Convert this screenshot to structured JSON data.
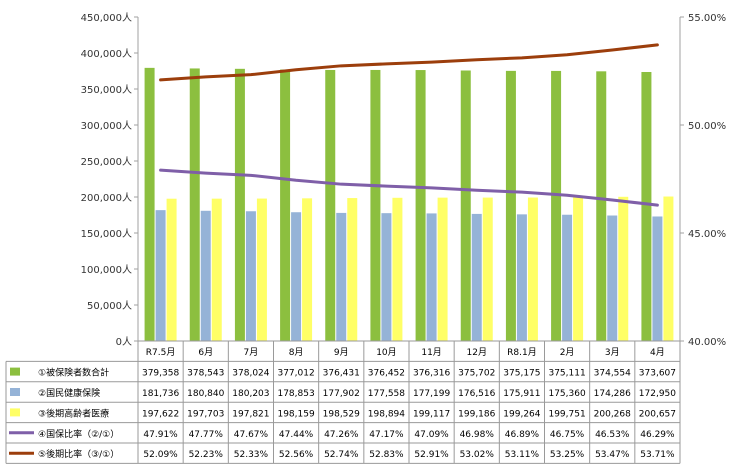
{
  "chart_data": {
    "type": "bar",
    "categories": [
      "R7.5月",
      "6月",
      "7月",
      "8月",
      "9月",
      "10月",
      "11月",
      "12月",
      "R8.1月",
      "2月",
      "3月",
      "4月"
    ],
    "y_left": {
      "min": 0,
      "max": 450000,
      "step": 50000,
      "unit": "人"
    },
    "y_right": {
      "min": 40.0,
      "max": 55.0,
      "step": 5.0,
      "unit": "%"
    },
    "series": [
      {
        "name": "①被保険者数合計",
        "kind": "bar",
        "axis": "left",
        "color": "#8cbf3f",
        "values": [
          379358,
          378543,
          378024,
          377012,
          376431,
          376452,
          376316,
          375702,
          375175,
          375111,
          374554,
          373607
        ],
        "labels": [
          "379,358",
          "378,543",
          "378,024",
          "377,012",
          "376,431",
          "376,452",
          "376,316",
          "375,702",
          "375,175",
          "375,111",
          "374,554",
          "373,607"
        ]
      },
      {
        "name": "②国民健康保険",
        "kind": "bar",
        "axis": "left",
        "color": "#95b3d7",
        "values": [
          181736,
          180840,
          180203,
          178853,
          177902,
          177558,
          177199,
          176516,
          175911,
          175360,
          174286,
          172950
        ],
        "labels": [
          "181,736",
          "180,840",
          "180,203",
          "178,853",
          "177,902",
          "177,558",
          "177,199",
          "176,516",
          "175,911",
          "175,360",
          "174,286",
          "172,950"
        ]
      },
      {
        "name": "③後期高齢者医療",
        "kind": "bar",
        "axis": "left",
        "color": "#ffff66",
        "values": [
          197622,
          197703,
          197821,
          198159,
          198529,
          198894,
          199117,
          199186,
          199264,
          199751,
          200268,
          200657
        ],
        "labels": [
          "197,622",
          "197,703",
          "197,821",
          "198,159",
          "198,529",
          "198,894",
          "199,117",
          "199,186",
          "199,264",
          "199,751",
          "200,268",
          "200,657"
        ]
      },
      {
        "name": "④国保比率（②/①）",
        "kind": "line",
        "axis": "right",
        "color": "#7f5fa8",
        "values": [
          47.91,
          47.77,
          47.67,
          47.44,
          47.26,
          47.17,
          47.09,
          46.98,
          46.89,
          46.75,
          46.53,
          46.29
        ],
        "labels": [
          "47.91%",
          "47.77%",
          "47.67%",
          "47.44%",
          "47.26%",
          "47.17%",
          "47.09%",
          "46.98%",
          "46.89%",
          "46.75%",
          "46.53%",
          "46.29%"
        ]
      },
      {
        "name": "⑤後期比率（③/①）",
        "kind": "line",
        "axis": "right",
        "color": "#9c3e0c",
        "values": [
          52.09,
          52.23,
          52.33,
          52.56,
          52.74,
          52.83,
          52.91,
          53.02,
          53.11,
          53.25,
          53.47,
          53.71
        ],
        "labels": [
          "52.09%",
          "52.23%",
          "52.33%",
          "52.56%",
          "52.74%",
          "52.83%",
          "52.91%",
          "53.02%",
          "53.11%",
          "53.25%",
          "53.47%",
          "53.71%"
        ]
      }
    ],
    "legend": "data-table-below",
    "grid": false
  }
}
